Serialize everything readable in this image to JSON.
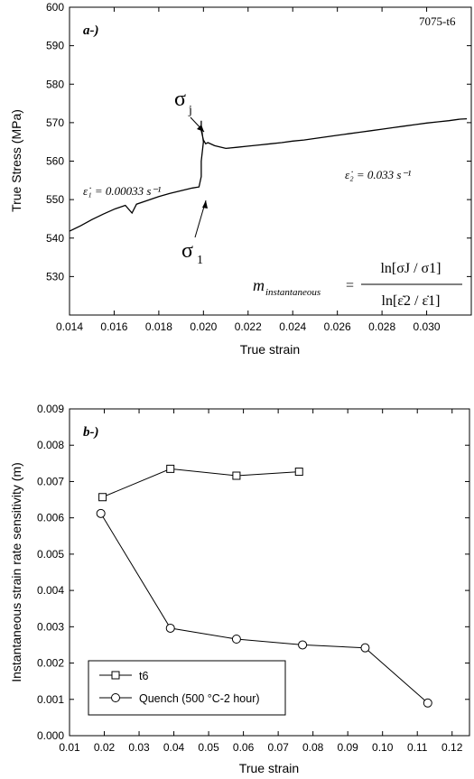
{
  "chart_data": [
    {
      "type": "line",
      "panel_label": "a-)",
      "material_label": "7075-t6",
      "xlabel": "True strain",
      "ylabel": "True Stress (MPa)",
      "xlim": [
        0.014,
        0.032
      ],
      "ylim": [
        520,
        600
      ],
      "xticks": [
        "0.014",
        "0.016",
        "0.018",
        "0.020",
        "0.022",
        "0.024",
        "0.026",
        "0.028",
        "0.030"
      ],
      "yticks": [
        "530",
        "540",
        "550",
        "560",
        "570",
        "580",
        "590",
        "600"
      ],
      "series": [
        {
          "x": [
            0.014,
            0.0145,
            0.015,
            0.0155,
            0.016,
            0.0165,
            0.0168,
            0.017,
            0.0175,
            0.018,
            0.0185,
            0.019,
            0.0195,
            0.0198,
            0.0199,
            0.0199,
            0.02,
            0.0199,
            0.0199,
            0.0199,
            0.02,
            0.0201,
            0.0202,
            0.0205,
            0.021,
            0.0215,
            0.022,
            0.0225,
            0.023,
            0.0235,
            0.024,
            0.0245,
            0.025,
            0.0255,
            0.026,
            0.0265,
            0.027,
            0.0275,
            0.028,
            0.0285,
            0.029,
            0.0295,
            0.03,
            0.0305,
            0.031,
            0.0315,
            0.0318
          ],
          "y": [
            541.8,
            543.2,
            544.8,
            546.2,
            547.5,
            548.5,
            546.5,
            548.8,
            549.8,
            550.8,
            551.6,
            552.3,
            553.0,
            553.3,
            556.0,
            560.0,
            565.0,
            569.0,
            570.5,
            568.0,
            565.5,
            564.5,
            564.8,
            564.0,
            563.3,
            563.6,
            563.9,
            564.2,
            564.5,
            564.8,
            565.2,
            565.5,
            565.9,
            566.3,
            566.7,
            567.1,
            567.5,
            567.9,
            568.3,
            568.7,
            569.1,
            569.5,
            569.9,
            570.2,
            570.5,
            570.9,
            571.0
          ]
        }
      ],
      "annotations": {
        "sigma_j": "σ",
        "sigma_j_sub": "j",
        "sigma_1": "σ",
        "sigma_1_sub": "1",
        "rate1_label": "ε̇₁ = 0.00033 s⁻¹",
        "rate2_label": "ε̇₂ = 0.033 s⁻¹",
        "formula_lhs": "m",
        "formula_lhs_sub": "instantaneous",
        "formula_numerator": "ln[σJ / σ1]",
        "formula_denominator": "ln[ε̇2 / ε̇1]"
      }
    },
    {
      "type": "line",
      "panel_label": "b-)",
      "xlabel": "True strain",
      "ylabel": "Instantaneous strain rate sensitivity (m)",
      "xlim": [
        0.01,
        0.125
      ],
      "ylim": [
        0.0,
        0.009
      ],
      "xticks": [
        "0.01",
        "0.02",
        "0.03",
        "0.04",
        "0.05",
        "0.06",
        "0.07",
        "0.08",
        "0.09",
        "0.10",
        "0.11",
        "0.12"
      ],
      "yticks": [
        "0.000",
        "0.001",
        "0.002",
        "0.003",
        "0.004",
        "0.005",
        "0.006",
        "0.007",
        "0.008",
        "0.009"
      ],
      "series": [
        {
          "name": "t6",
          "marker": "square",
          "x": [
            0.0195,
            0.039,
            0.058,
            0.076
          ],
          "y": [
            0.00657,
            0.00735,
            0.00716,
            0.00727
          ]
        },
        {
          "name": "Quench (500 °C-2 hour)",
          "marker": "circle",
          "x": [
            0.019,
            0.039,
            0.058,
            0.077,
            0.095,
            0.113
          ],
          "y": [
            0.00612,
            0.00296,
            0.00266,
            0.0025,
            0.00242,
            0.0009
          ]
        }
      ],
      "legend_position": "bottom-left"
    }
  ]
}
